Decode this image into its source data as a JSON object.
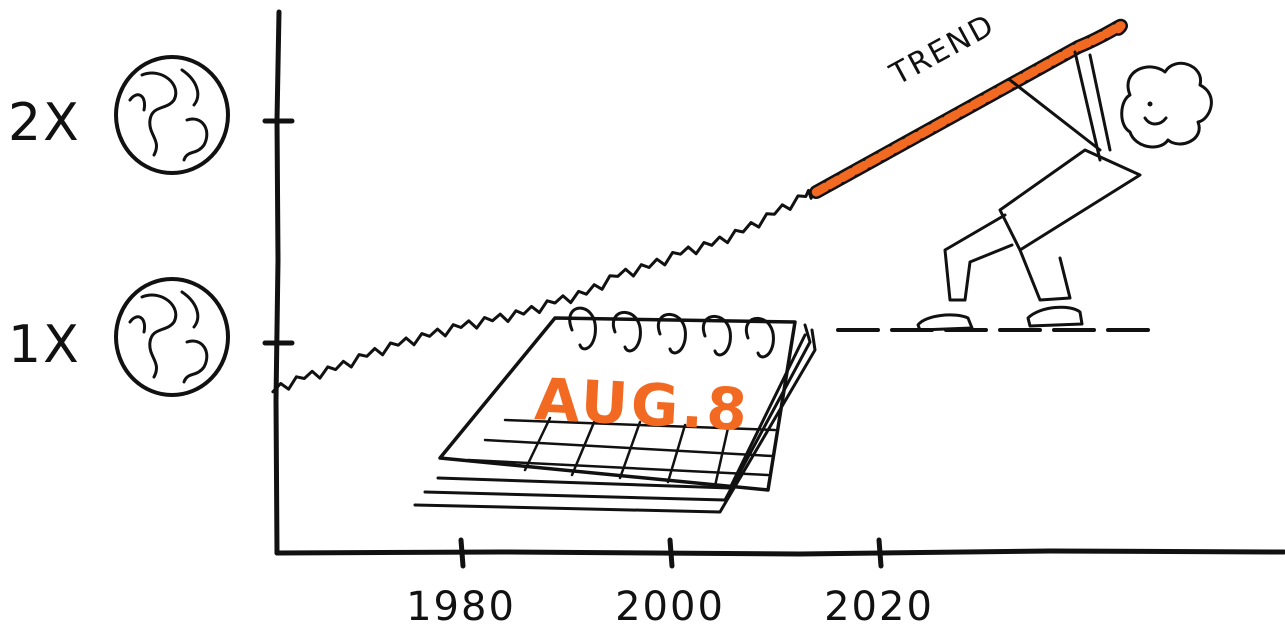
{
  "chart_data": {
    "type": "line",
    "y_ticks": [
      "1X",
      "2X"
    ],
    "x_ticks": [
      "1980",
      "2000",
      "2020"
    ],
    "y_tick_icon": "earth-globe-icon",
    "series": [
      {
        "x": [
          1962,
          1965,
          1968,
          1971,
          1974,
          1977,
          1980,
          1983,
          1986,
          1989,
          1992,
          1995,
          1998,
          2001,
          2004,
          2007,
          2010,
          2013,
          2014
        ],
        "y": [
          0.78,
          0.84,
          0.88,
          0.94,
          0.99,
          1.03,
          1.07,
          1.1,
          1.13,
          1.18,
          1.22,
          1.3,
          1.34,
          1.4,
          1.44,
          1.5,
          1.58,
          1.66,
          1.68
        ]
      }
    ],
    "trend_extension": {
      "x": [
        2014,
        2041
      ],
      "y": [
        1.68,
        2.37
      ]
    },
    "trend_color": "#f26a22",
    "baseline_level": 1.0,
    "trend_label": "TREND",
    "calendar_date": "AUG.8",
    "calendar_color": "#f26a22",
    "grid": false
  }
}
